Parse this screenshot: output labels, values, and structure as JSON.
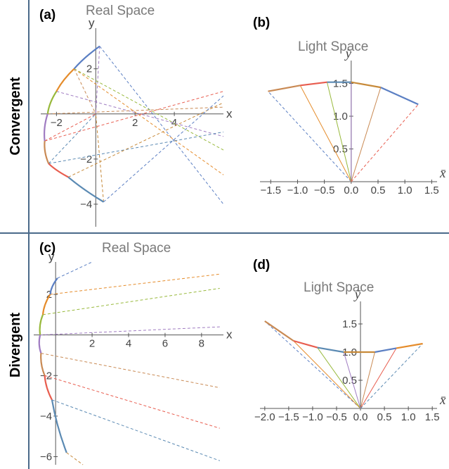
{
  "row_labels": [
    "Convergent",
    "Divergent"
  ],
  "panels": [
    {
      "letter": "(a)",
      "title": "Real Space"
    },
    {
      "letter": "(b)",
      "title": "Light Space"
    },
    {
      "letter": "(c)",
      "title": "Real Space"
    },
    {
      "letter": "(d)",
      "title": "Light Space"
    }
  ],
  "colors": {
    "divider": "#4a6a8a",
    "axis": "#555555",
    "segments": [
      "#5b7fc3",
      "#e58c2b",
      "#98b93c",
      "#a07cc2",
      "#c98a54",
      "#e85d4f",
      "#5b8ab3",
      "#c78a3a"
    ]
  },
  "chart_data": [
    {
      "type": "line",
      "panel": "(a)",
      "title": "Real Space",
      "xlabel": "x",
      "ylabel": "y",
      "xlim": [
        -2.8,
        6.5
      ],
      "ylim": [
        -5.0,
        3.8
      ],
      "xticks": [
        -2,
        2,
        4
      ],
      "yticks": [
        -4,
        -2,
        2
      ],
      "xtick_labels": [
        "-2",
        "2",
        "4"
      ],
      "ytick_labels": [
        "-4",
        "-2",
        "2"
      ],
      "mirror_points": [
        [
          0.2,
          3.0
        ],
        [
          -1.1,
          2.0
        ],
        [
          -2.0,
          1.0
        ],
        [
          -2.45,
          0.0
        ],
        [
          -2.6,
          -1.2
        ],
        [
          -2.4,
          -2.2
        ],
        [
          -1.4,
          -2.8
        ],
        [
          0.4,
          -3.9
        ]
      ],
      "reflected_rays": [
        {
          "from": [
            0.2,
            3.0
          ],
          "to": [
            6.5,
            -4.0
          ]
        },
        {
          "from": [
            -1.1,
            2.0
          ],
          "to": [
            6.5,
            -2.7
          ]
        },
        {
          "from": [
            -1.1,
            2.0
          ],
          "to": [
            6.5,
            -1.6
          ]
        },
        {
          "from": [
            -2.0,
            1.0
          ],
          "to": [
            6.5,
            -1.0
          ]
        },
        {
          "from": [
            -2.45,
            0.0
          ],
          "to": [
            6.5,
            0.3
          ]
        },
        {
          "from": [
            -2.6,
            -1.2
          ],
          "to": [
            6.5,
            1.0
          ]
        },
        {
          "from": [
            -2.4,
            -2.2
          ],
          "to": [
            6.5,
            -0.8
          ]
        },
        {
          "from": [
            -1.4,
            -2.8
          ],
          "to": [
            6.5,
            0.5
          ]
        },
        {
          "from": [
            0.4,
            -3.9
          ],
          "to": [
            6.5,
            0.8
          ]
        }
      ],
      "focal_rays": [
        {
          "from": [
            0.2,
            3.0
          ],
          "to": [
            0.0,
            0.0
          ]
        },
        {
          "from": [
            -1.1,
            2.0
          ],
          "to": [
            0.0,
            0.0
          ]
        },
        {
          "from": [
            -2.6,
            -1.2
          ],
          "to": [
            0.0,
            0.0
          ]
        },
        {
          "from": [
            -2.4,
            -2.2
          ],
          "to": [
            0.0,
            0.0
          ]
        },
        {
          "from": [
            0.4,
            -3.9
          ],
          "to": [
            0.0,
            0.0
          ]
        }
      ]
    },
    {
      "type": "line",
      "panel": "(b)",
      "title": "Light Space",
      "xlabel": "x̄",
      "ylabel": "ȳ",
      "xlim": [
        -1.7,
        1.6
      ],
      "ylim": [
        0,
        1.85
      ],
      "xticks": [
        -1.5,
        -1.0,
        -0.5,
        0.0,
        0.5,
        1.0,
        1.5
      ],
      "xtick_labels": [
        "-1.5",
        "-1.0",
        "-0.5",
        "0.0",
        "0.5",
        "1.0",
        "1.5"
      ],
      "yticks": [
        0.5,
        1.0,
        1.5
      ],
      "ytick_labels": [
        "0.5",
        "1.0",
        "1.5"
      ],
      "curve_points": [
        [
          -1.55,
          1.38
        ],
        [
          -0.95,
          1.47
        ],
        [
          -0.45,
          1.52
        ],
        [
          0.0,
          1.52
        ],
        [
          0.55,
          1.44
        ],
        [
          1.25,
          1.18
        ]
      ],
      "fan_origin": [
        0.0,
        0.0
      ]
    },
    {
      "type": "line",
      "panel": "(c)",
      "title": "Real Space",
      "xlabel": "x",
      "ylabel": "y",
      "xlim": [
        -1.2,
        9.2
      ],
      "ylim": [
        -6.4,
        3.6
      ],
      "xticks": [
        2,
        4,
        6,
        8
      ],
      "yticks": [
        -6,
        -4,
        -2,
        2
      ],
      "xtick_labels": [
        "2",
        "4",
        "6",
        "8"
      ],
      "ytick_labels": [
        "-6",
        "-4",
        "-2",
        "2"
      ],
      "mirror_points": [
        [
          0.1,
          2.8
        ],
        [
          -0.3,
          2.0
        ],
        [
          -0.7,
          1.0
        ],
        [
          -0.85,
          0.0
        ],
        [
          -0.8,
          -0.9
        ],
        [
          -0.6,
          -2.0
        ],
        [
          -0.2,
          -3.2
        ],
        [
          0.6,
          -5.8
        ]
      ],
      "reflected_rays": [
        {
          "from": [
            0.1,
            2.8
          ],
          "to": [
            2.0,
            3.6
          ]
        },
        {
          "from": [
            -0.3,
            2.0
          ],
          "to": [
            9.0,
            3.0
          ]
        },
        {
          "from": [
            -0.7,
            1.0
          ],
          "to": [
            9.0,
            2.3
          ]
        },
        {
          "from": [
            -0.85,
            0.0
          ],
          "to": [
            9.0,
            0.4
          ]
        },
        {
          "from": [
            -0.8,
            -0.9
          ],
          "to": [
            9.0,
            -2.6
          ]
        },
        {
          "from": [
            -0.6,
            -2.0
          ],
          "to": [
            9.0,
            -4.6
          ]
        },
        {
          "from": [
            -0.2,
            -3.2
          ],
          "to": [
            9.0,
            -6.2
          ]
        },
        {
          "from": [
            0.6,
            -5.8
          ],
          "to": [
            1.5,
            -6.4
          ]
        }
      ]
    },
    {
      "type": "line",
      "panel": "(d)",
      "title": "Light Space",
      "xlabel": "x̄",
      "ylabel": "ȳ",
      "xlim": [
        -2.1,
        1.6
      ],
      "ylim": [
        0,
        1.9
      ],
      "xticks": [
        -2.0,
        -1.5,
        -1.0,
        -0.5,
        0.0,
        0.5,
        1.0,
        1.5
      ],
      "xtick_labels": [
        "-2.0",
        "-1.5",
        "-1.0",
        "-0.5",
        "0.0",
        "0.5",
        "1.0",
        "1.5"
      ],
      "yticks": [
        0.5,
        1.0,
        1.5
      ],
      "ytick_labels": [
        "0.5",
        "1.0",
        "1.5"
      ],
      "curve_points": [
        [
          -2.0,
          1.55
        ],
        [
          -1.4,
          1.2
        ],
        [
          -0.9,
          1.08
        ],
        [
          -0.35,
          1.0
        ],
        [
          0.3,
          1.0
        ],
        [
          0.75,
          1.07
        ],
        [
          1.3,
          1.15
        ]
      ],
      "fan_origin": [
        0.0,
        0.0
      ]
    }
  ]
}
